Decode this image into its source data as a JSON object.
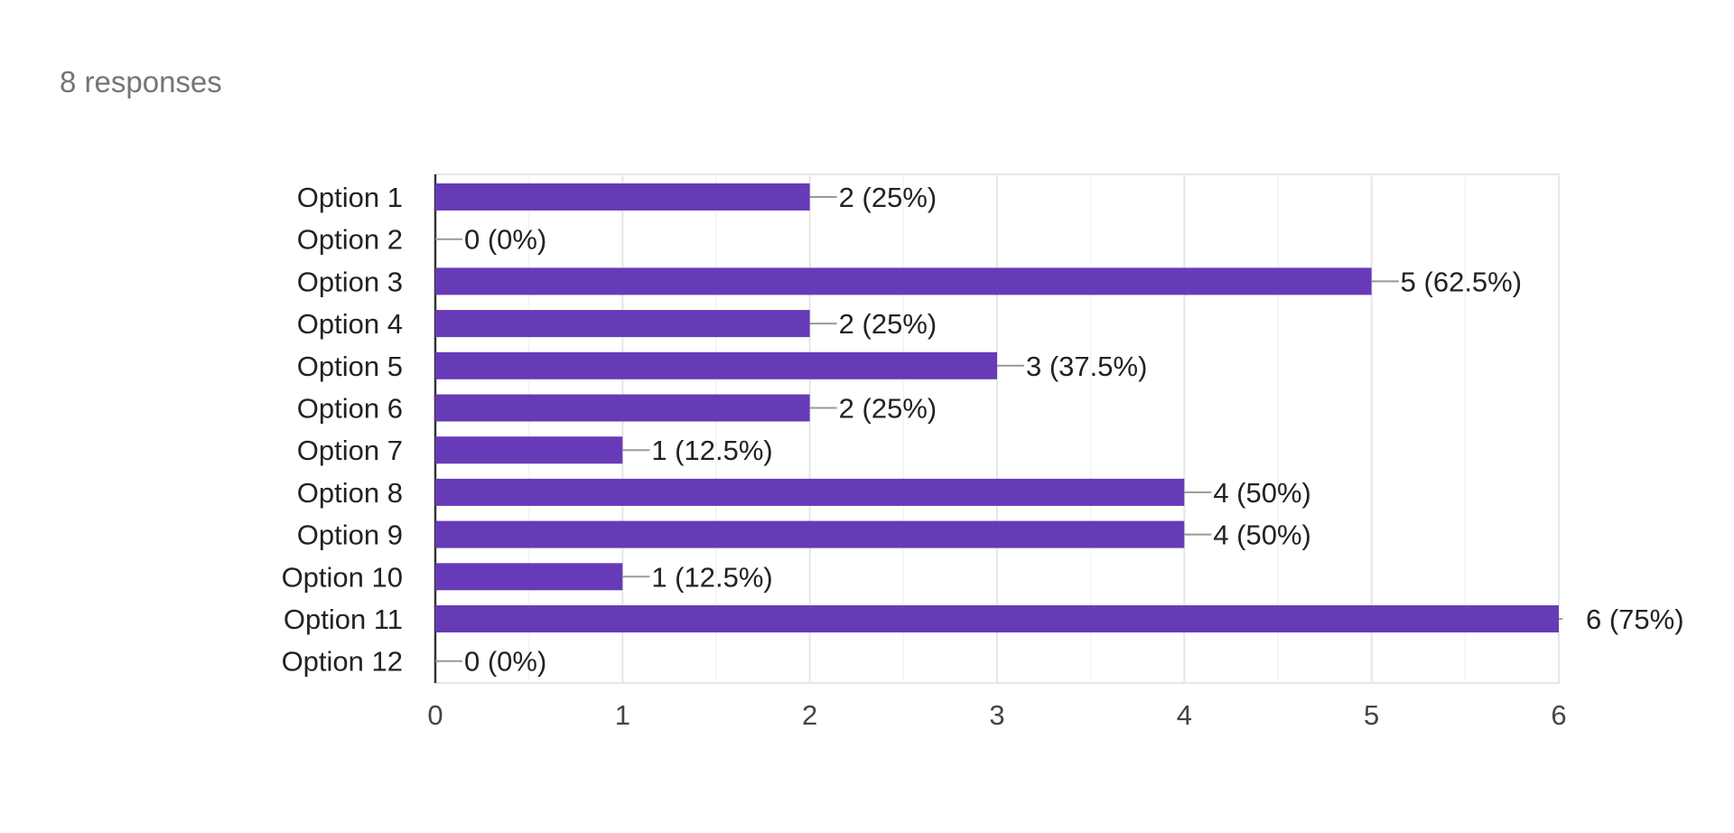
{
  "summary": {
    "responses_text": "8 responses"
  },
  "colors": {
    "bar": "#673ab7",
    "gridline": "#e6e6e6",
    "axis": "#333333",
    "leader": "#999999"
  },
  "chart_data": {
    "type": "bar",
    "orientation": "horizontal",
    "title": "",
    "xlabel": "",
    "ylabel": "",
    "categories": [
      "Option 1",
      "Option 2",
      "Option 3",
      "Option 4",
      "Option 5",
      "Option 6",
      "Option 7",
      "Option 8",
      "Option 9",
      "Option 10",
      "Option 11",
      "Option 12"
    ],
    "values": [
      2,
      0,
      5,
      2,
      3,
      2,
      1,
      4,
      4,
      1,
      6,
      0
    ],
    "data_labels": [
      "2 (25%)",
      "0 (0%)",
      "5 (62.5%)",
      "2 (25%)",
      "3 (37.5%)",
      "2 (25%)",
      "1 (12.5%)",
      "4 (50%)",
      "4 (50%)",
      "1 (12.5%)",
      "6 (75%)",
      "0 (0%)"
    ],
    "xlim": [
      0,
      6
    ],
    "xticks": [
      0,
      1,
      2,
      3,
      4,
      5,
      6
    ],
    "xtick_labels": [
      "0",
      "1",
      "2",
      "3",
      "4",
      "5",
      "6"
    ],
    "grid": true,
    "legend": "none"
  }
}
